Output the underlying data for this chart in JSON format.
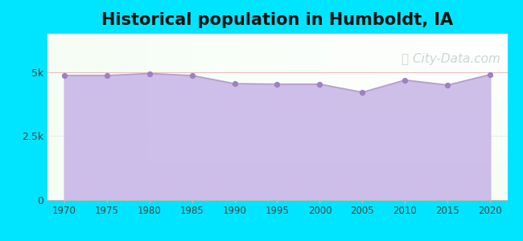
{
  "title": "Historical population in Humboldt, IA",
  "title_fontsize": 15,
  "title_fontweight": "bold",
  "years": [
    1970,
    1975,
    1980,
    1985,
    1990,
    1995,
    2000,
    2005,
    2010,
    2015,
    2020
  ],
  "population": [
    4869,
    4869,
    4945,
    4869,
    4550,
    4530,
    4530,
    4211,
    4690,
    4494,
    4906
  ],
  "line_color": "#b39dcc",
  "fill_color": "#c9b8e8",
  "fill_alpha": 0.9,
  "marker_color": "#a080c0",
  "marker_size": 18,
  "background_outer": "#00e5ff",
  "ylim": [
    0,
    6500
  ],
  "xlim": [
    1968,
    2022
  ],
  "yticks": [
    0,
    2500,
    5000
  ],
  "ytick_labels": [
    "0",
    "2.5k",
    "5k"
  ],
  "xticks": [
    1970,
    1975,
    1980,
    1985,
    1990,
    1995,
    2000,
    2005,
    2010,
    2015,
    2020
  ],
  "watermark_text": "ⓘ City-Data.com",
  "watermark_color": "#a0b8b8",
  "watermark_alpha": 0.55,
  "watermark_fontsize": 11
}
